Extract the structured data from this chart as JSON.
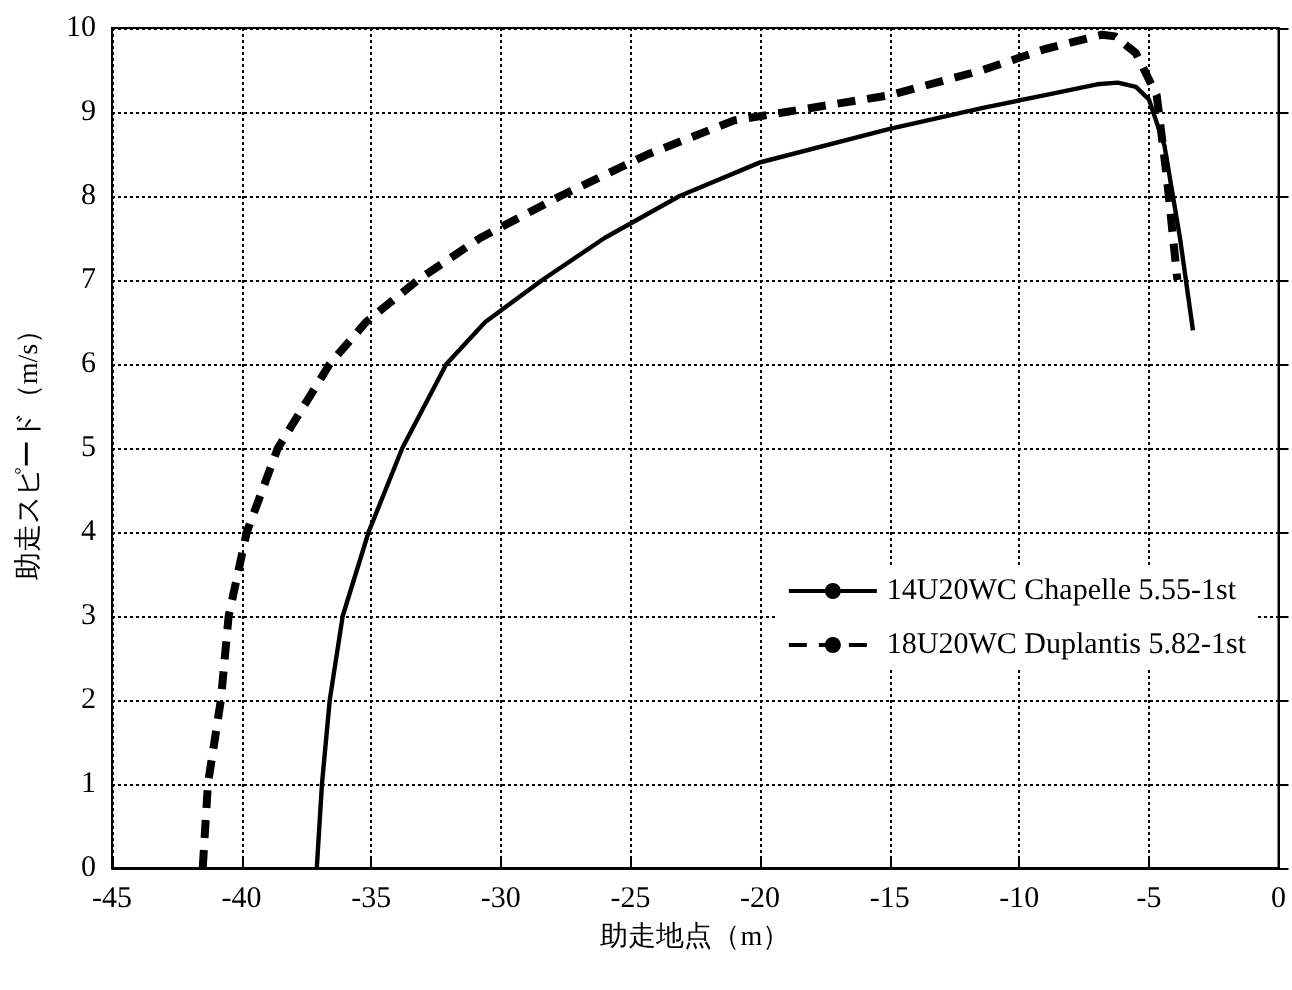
{
  "chart_data": {
    "type": "line",
    "xlabel": "助走地点（m）",
    "ylabel": "助走スピード（m/s）",
    "xlim": [
      -45,
      0
    ],
    "xticks": [
      -45,
      -40,
      -35,
      -30,
      -25,
      -20,
      -15,
      -10,
      -5,
      0
    ],
    "ylim": [
      0,
      10
    ],
    "yticks": [
      0,
      1,
      2,
      3,
      4,
      5,
      6,
      7,
      8,
      9,
      10
    ],
    "grid": true,
    "legend": "center right",
    "marker": "none",
    "series": [
      {
        "name": "14U20WC Chapelle 5.55-1st",
        "color": "#000000",
        "line_style": "solid",
        "x": [
          -37.1,
          -36.9,
          -36.6,
          -36.1,
          -35.1,
          -33.8,
          -32.1,
          -30.6,
          -28.4,
          -26,
          -23.1,
          -20,
          -15,
          -11.4,
          -9,
          -7,
          -6.2,
          -5.5,
          -5,
          -4.4,
          -3.8,
          -3.3
        ],
        "values": [
          0,
          1,
          2,
          3,
          4,
          5,
          6,
          6.5,
          7,
          7.5,
          8,
          8.4,
          8.8,
          9.05,
          9.2,
          9.33,
          9.35,
          9.3,
          9.15,
          8.6,
          7.5,
          6.4
        ]
      },
      {
        "name": "18U20WC Duplantis 5.82-1st",
        "color": "#000000",
        "line_style": "dashed",
        "x": [
          -41.5,
          -41.3,
          -40.8,
          -40.5,
          -39.8,
          -38.6,
          -37.6,
          -36.6,
          -35.2,
          -33.2,
          -30.8,
          -27.7,
          -24.3,
          -21,
          -15,
          -11.4,
          -9,
          -6.8,
          -6.3,
          -5.5,
          -4.7,
          -4.3,
          -3.9
        ],
        "values": [
          0,
          1,
          2,
          3,
          4,
          5,
          5.5,
          6,
          6.5,
          7,
          7.5,
          8,
          8.5,
          8.9,
          9.2,
          9.5,
          9.75,
          9.92,
          9.9,
          9.7,
          9.2,
          8.2,
          7.0
        ]
      }
    ]
  }
}
